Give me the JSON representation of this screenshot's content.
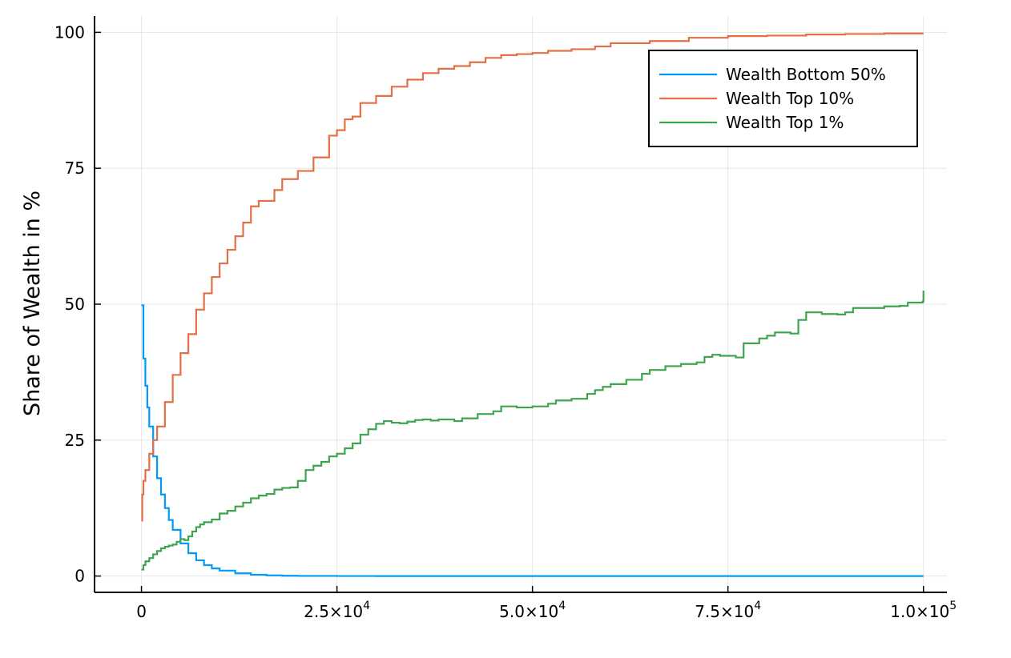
{
  "chart_data": {
    "type": "line",
    "title": "",
    "xlabel": "",
    "ylabel": "Share of Wealth in %",
    "xlim": [
      -6000,
      103000
    ],
    "ylim": [
      -3,
      103
    ],
    "grid": true,
    "legend_position": "top-right",
    "x_ticks": [
      {
        "value": 0,
        "mantissa": "0",
        "exp": ""
      },
      {
        "value": 25000,
        "mantissa": "2.5×10",
        "exp": "4"
      },
      {
        "value": 50000,
        "mantissa": "5.0×10",
        "exp": "4"
      },
      {
        "value": 75000,
        "mantissa": "7.5×10",
        "exp": "4"
      },
      {
        "value": 100000,
        "mantissa": "1.0×10",
        "exp": "5"
      }
    ],
    "y_ticks": [
      {
        "value": 0,
        "label": "0"
      },
      {
        "value": 25,
        "label": "25"
      },
      {
        "value": 50,
        "label": "50"
      },
      {
        "value": 75,
        "label": "75"
      },
      {
        "value": 100,
        "label": "100"
      }
    ],
    "series": [
      {
        "name": "Wealth Bottom 50%",
        "color": "#009AFA",
        "points": [
          [
            0,
            49.8
          ],
          [
            250,
            40
          ],
          [
            500,
            35
          ],
          [
            750,
            31
          ],
          [
            1000,
            27.5
          ],
          [
            1500,
            22
          ],
          [
            2000,
            18
          ],
          [
            2500,
            15
          ],
          [
            3000,
            12.5
          ],
          [
            3500,
            10.3
          ],
          [
            4000,
            8.5
          ],
          [
            5000,
            6
          ],
          [
            6000,
            4.2
          ],
          [
            7000,
            2.9
          ],
          [
            8000,
            2
          ],
          [
            9000,
            1.4
          ],
          [
            10000,
            1
          ],
          [
            12000,
            0.5
          ],
          [
            14000,
            0.25
          ],
          [
            16000,
            0.12
          ],
          [
            18000,
            0.06
          ],
          [
            20000,
            0.03
          ],
          [
            25000,
            0.01
          ],
          [
            30000,
            0
          ],
          [
            40000,
            0
          ],
          [
            50000,
            0
          ],
          [
            60000,
            0
          ],
          [
            70000,
            0
          ],
          [
            80000,
            0
          ],
          [
            90000,
            0
          ],
          [
            100000,
            0
          ]
        ]
      },
      {
        "name": "Wealth Top 10%",
        "color": "#E26F46",
        "points": [
          [
            0,
            10.2
          ],
          [
            100,
            15
          ],
          [
            250,
            17.5
          ],
          [
            500,
            19.5
          ],
          [
            1000,
            22.5
          ],
          [
            1500,
            25
          ],
          [
            2000,
            27.5
          ],
          [
            3000,
            32
          ],
          [
            4000,
            37
          ],
          [
            5000,
            41
          ],
          [
            6000,
            44.5
          ],
          [
            7000,
            49
          ],
          [
            8000,
            52
          ],
          [
            9000,
            55
          ],
          [
            10000,
            57.5
          ],
          [
            11000,
            60
          ],
          [
            12000,
            62.5
          ],
          [
            13000,
            65
          ],
          [
            14000,
            68
          ],
          [
            15000,
            69
          ],
          [
            17000,
            71
          ],
          [
            18000,
            73
          ],
          [
            20000,
            74.5
          ],
          [
            22000,
            77
          ],
          [
            24000,
            81
          ],
          [
            25000,
            82
          ],
          [
            26000,
            84
          ],
          [
            27000,
            84.5
          ],
          [
            28000,
            87
          ],
          [
            30000,
            88.3
          ],
          [
            32000,
            90
          ],
          [
            34000,
            91.3
          ],
          [
            36000,
            92.5
          ],
          [
            38000,
            93.3
          ],
          [
            40000,
            93.8
          ],
          [
            42000,
            94.5
          ],
          [
            44000,
            95.3
          ],
          [
            46000,
            95.8
          ],
          [
            48000,
            96
          ],
          [
            50000,
            96.2
          ],
          [
            52000,
            96.6
          ],
          [
            55000,
            96.9
          ],
          [
            58000,
            97.4
          ],
          [
            60000,
            98
          ],
          [
            65000,
            98.4
          ],
          [
            70000,
            99
          ],
          [
            75000,
            99.3
          ],
          [
            80000,
            99.4
          ],
          [
            85000,
            99.6
          ],
          [
            90000,
            99.7
          ],
          [
            95000,
            99.8
          ],
          [
            100000,
            99.8
          ]
        ]
      },
      {
        "name": "Wealth Top 1%",
        "color": "#3EA44E",
        "points": [
          [
            0,
            1.2
          ],
          [
            250,
            2
          ],
          [
            500,
            2.7
          ],
          [
            1000,
            3.3
          ],
          [
            1500,
            4
          ],
          [
            2000,
            4.6
          ],
          [
            2500,
            5.1
          ],
          [
            3000,
            5.4
          ],
          [
            3500,
            5.6
          ],
          [
            4000,
            5.8
          ],
          [
            4500,
            6.3
          ],
          [
            5000,
            6.8
          ],
          [
            5500,
            6.6
          ],
          [
            6000,
            7.3
          ],
          [
            6500,
            8.2
          ],
          [
            7000,
            9
          ],
          [
            7500,
            9.5
          ],
          [
            8000,
            9.9
          ],
          [
            9000,
            10.4
          ],
          [
            10000,
            11.5
          ],
          [
            11000,
            12
          ],
          [
            12000,
            12.8
          ],
          [
            13000,
            13.5
          ],
          [
            14000,
            14.3
          ],
          [
            15000,
            14.8
          ],
          [
            16000,
            15.1
          ],
          [
            17000,
            15.9
          ],
          [
            18000,
            16.2
          ],
          [
            19000,
            16.3
          ],
          [
            20000,
            17.5
          ],
          [
            21000,
            19.5
          ],
          [
            22000,
            20.3
          ],
          [
            23000,
            21
          ],
          [
            24000,
            22
          ],
          [
            25000,
            22.5
          ],
          [
            26000,
            23.5
          ],
          [
            27000,
            24.4
          ],
          [
            28000,
            26
          ],
          [
            29000,
            27
          ],
          [
            30000,
            28
          ],
          [
            31000,
            28.5
          ],
          [
            32000,
            28.2
          ],
          [
            33000,
            28.1
          ],
          [
            34000,
            28.4
          ],
          [
            35000,
            28.7
          ],
          [
            36000,
            28.8
          ],
          [
            37000,
            28.6
          ],
          [
            38000,
            28.8
          ],
          [
            39000,
            28.8
          ],
          [
            40000,
            28.5
          ],
          [
            41000,
            29
          ],
          [
            43000,
            29.8
          ],
          [
            45000,
            30.3
          ],
          [
            46000,
            31.2
          ],
          [
            48000,
            31
          ],
          [
            50000,
            31.2
          ],
          [
            52000,
            31.7
          ],
          [
            53000,
            32.3
          ],
          [
            55000,
            32.6
          ],
          [
            57000,
            33.5
          ],
          [
            58000,
            34.2
          ],
          [
            59000,
            34.8
          ],
          [
            60000,
            35.3
          ],
          [
            62000,
            36.1
          ],
          [
            64000,
            37.2
          ],
          [
            65000,
            37.9
          ],
          [
            67000,
            38.6
          ],
          [
            69000,
            39
          ],
          [
            71000,
            39.3
          ],
          [
            72000,
            40.3
          ],
          [
            73000,
            40.7
          ],
          [
            74000,
            40.5
          ],
          [
            76000,
            40.2
          ],
          [
            77000,
            42.8
          ],
          [
            79000,
            43.7
          ],
          [
            80000,
            44.2
          ],
          [
            81000,
            44.8
          ],
          [
            83000,
            44.6
          ],
          [
            84000,
            47.1
          ],
          [
            85000,
            48.5
          ],
          [
            87000,
            48.2
          ],
          [
            89000,
            48.1
          ],
          [
            90000,
            48.5
          ],
          [
            91000,
            49.3
          ],
          [
            93000,
            49.3
          ],
          [
            95000,
            49.6
          ],
          [
            97000,
            49.7
          ],
          [
            98000,
            50.3
          ],
          [
            99900,
            50.5
          ],
          [
            100000,
            52.5
          ]
        ]
      }
    ]
  }
}
